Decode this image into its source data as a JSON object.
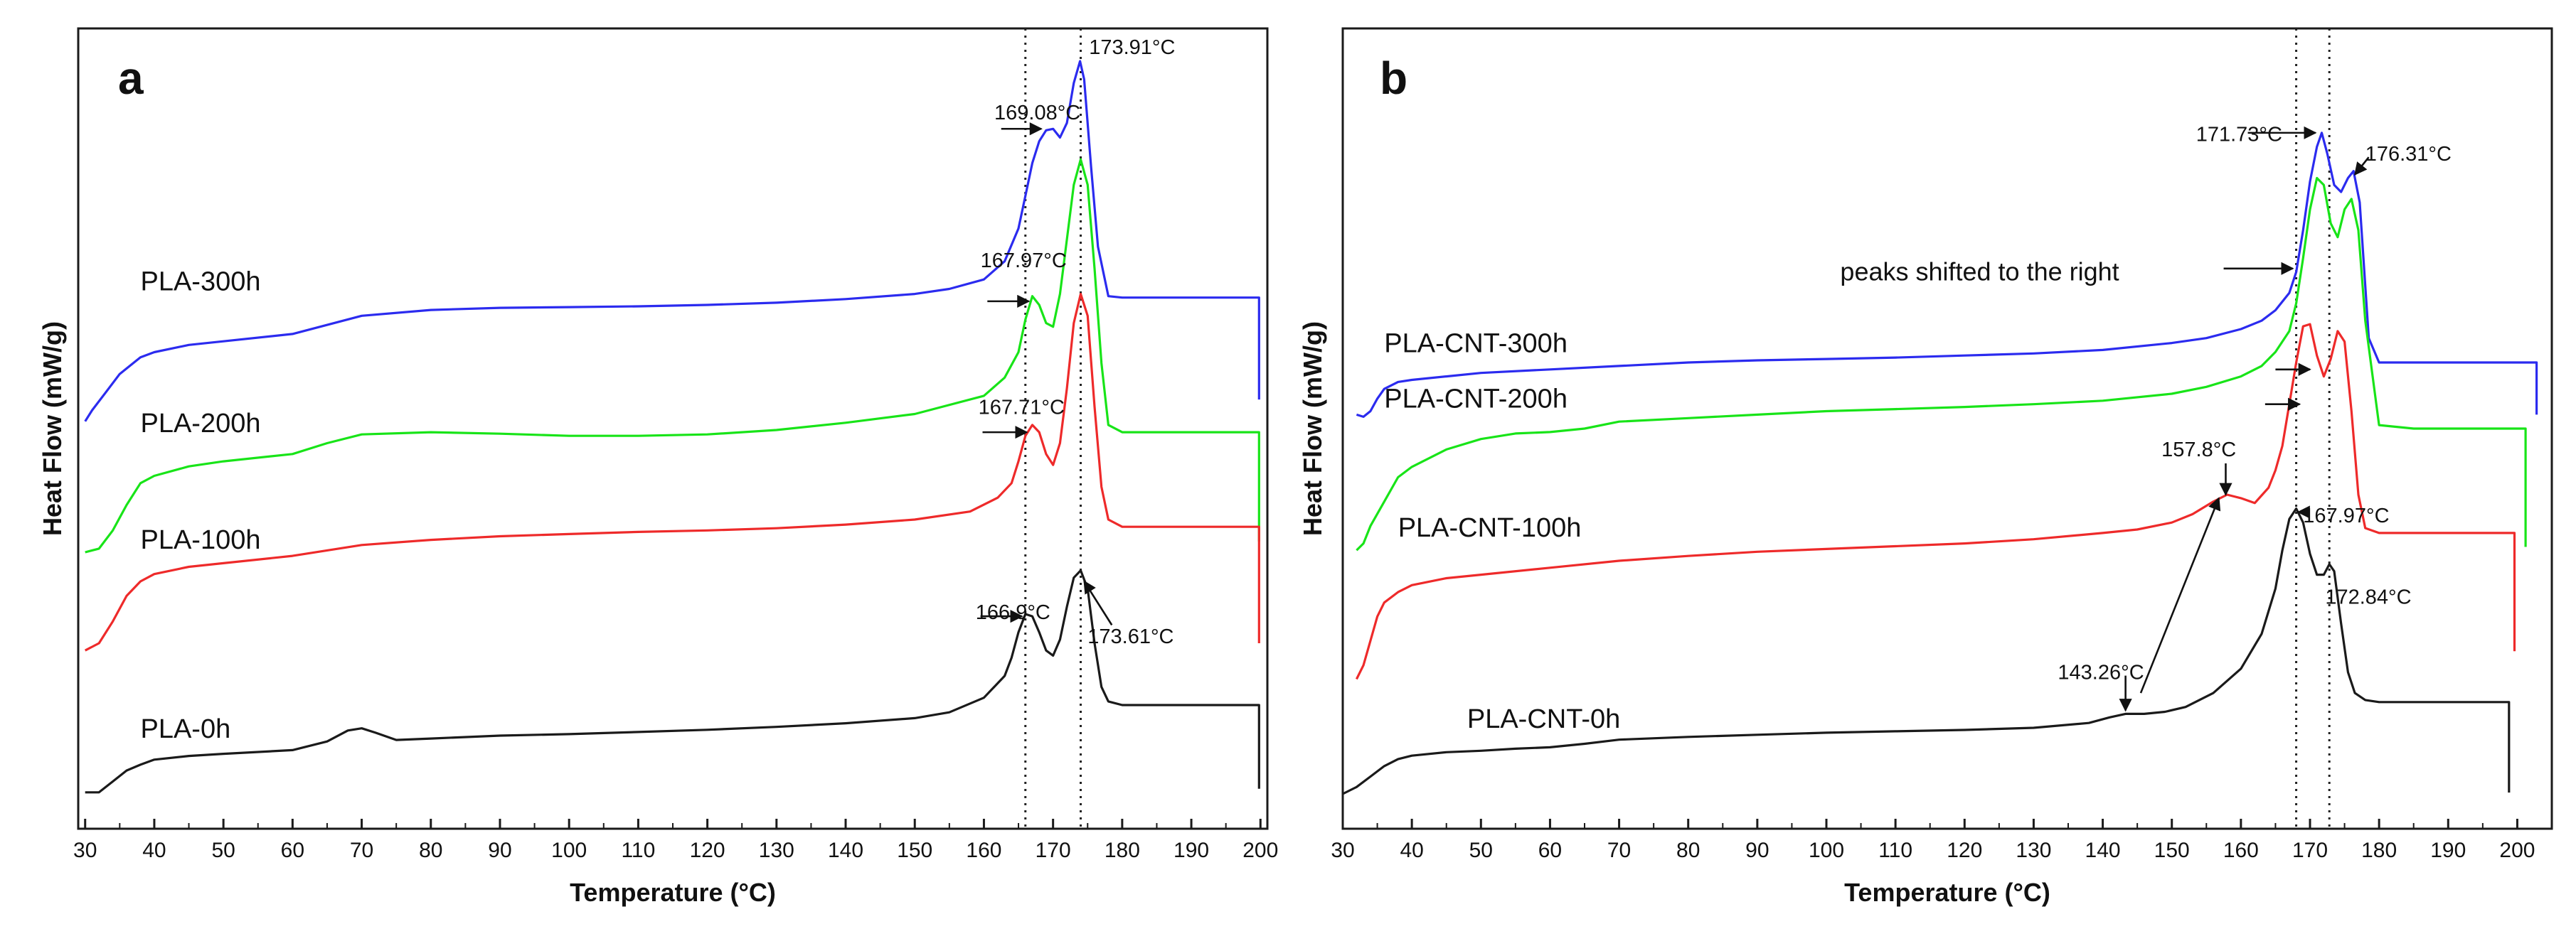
{
  "chart_data": [
    {
      "type": "line",
      "panel_label": "a",
      "xlabel": "Temperature (°C)",
      "ylabel": "Heat Flow (mW/g)",
      "xlim": [
        29,
        201
      ],
      "ylim": [
        -0.5,
        10.5
      ],
      "xticks": [
        30,
        40,
        50,
        60,
        70,
        80,
        90,
        100,
        110,
        120,
        130,
        140,
        150,
        160,
        170,
        180,
        190,
        200
      ],
      "reference_lines": [
        166,
        174
      ],
      "series": [
        {
          "name": "PLA-300h",
          "color": "#2b2bef",
          "label_at": [
            38,
            6.9
          ],
          "x": [
            30,
            31,
            33,
            35,
            38,
            40,
            45,
            50,
            60,
            70,
            80,
            90,
            100,
            110,
            120,
            130,
            140,
            150,
            155,
            160,
            163,
            165,
            166,
            167,
            168,
            169,
            170,
            171,
            172,
            173,
            173.9,
            174.5,
            175.5,
            176.5,
            178,
            180,
            185,
            190,
            195,
            199.8,
            199.8
          ],
          "y": [
            5.1,
            5.25,
            5.5,
            5.75,
            5.98,
            6.05,
            6.15,
            6.2,
            6.3,
            6.55,
            6.63,
            6.66,
            6.67,
            6.68,
            6.7,
            6.73,
            6.78,
            6.85,
            6.92,
            7.05,
            7.3,
            7.75,
            8.2,
            8.65,
            8.95,
            9.1,
            9.12,
            9.0,
            9.2,
            9.75,
            10.05,
            9.8,
            8.6,
            7.5,
            6.82,
            6.8,
            6.8,
            6.8,
            6.8,
            6.8,
            5.4
          ]
        },
        {
          "name": "PLA-200h",
          "color": "#18e418",
          "label_at": [
            38,
            4.95
          ],
          "x": [
            30,
            32,
            34,
            36,
            38,
            40,
            45,
            50,
            60,
            65,
            70,
            80,
            90,
            100,
            110,
            120,
            130,
            140,
            150,
            160,
            163,
            165,
            166,
            167,
            168,
            169,
            170,
            171,
            172,
            173,
            174,
            175,
            176,
            177,
            178,
            180,
            185,
            190,
            195,
            199.8,
            199.8
          ],
          "y": [
            3.3,
            3.35,
            3.6,
            3.95,
            4.25,
            4.35,
            4.48,
            4.55,
            4.65,
            4.8,
            4.92,
            4.95,
            4.93,
            4.9,
            4.9,
            4.92,
            4.98,
            5.08,
            5.2,
            5.45,
            5.7,
            6.05,
            6.5,
            6.82,
            6.7,
            6.45,
            6.4,
            6.85,
            7.6,
            8.35,
            8.7,
            8.35,
            7.2,
            5.9,
            5.05,
            4.95,
            4.95,
            4.95,
            4.95,
            4.95,
            3.45
          ]
        },
        {
          "name": "PLA-100h",
          "color": "#ee2a2a",
          "label_at": [
            38,
            3.35
          ],
          "x": [
            30,
            32,
            34,
            36,
            38,
            40,
            45,
            50,
            60,
            70,
            80,
            90,
            100,
            110,
            120,
            130,
            140,
            150,
            158,
            162,
            164,
            165,
            166,
            167,
            168,
            169,
            170,
            171,
            172,
            173,
            174,
            175,
            176,
            177,
            178,
            180,
            185,
            190,
            195,
            199.8,
            199.8
          ],
          "y": [
            1.95,
            2.05,
            2.35,
            2.7,
            2.9,
            3.0,
            3.1,
            3.15,
            3.25,
            3.4,
            3.47,
            3.52,
            3.55,
            3.58,
            3.6,
            3.63,
            3.68,
            3.75,
            3.86,
            4.05,
            4.25,
            4.55,
            4.9,
            5.05,
            4.95,
            4.65,
            4.5,
            4.8,
            5.55,
            6.45,
            6.85,
            6.55,
            5.3,
            4.2,
            3.75,
            3.65,
            3.65,
            3.65,
            3.65,
            3.65,
            2.05
          ]
        },
        {
          "name": "PLA-0h",
          "color": "#1a1a1a",
          "label_at": [
            38,
            0.75
          ],
          "x": [
            30,
            32,
            34,
            36,
            38,
            40,
            45,
            50,
            60,
            65,
            68,
            70,
            72,
            75,
            80,
            90,
            100,
            110,
            120,
            130,
            140,
            150,
            155,
            160,
            163,
            164,
            165,
            166,
            167,
            168,
            169,
            170,
            171,
            172,
            173,
            174,
            175,
            176,
            177,
            178,
            180,
            185,
            190,
            195,
            199.8,
            199.8
          ],
          "y": [
            0.0,
            0.0,
            0.15,
            0.3,
            0.38,
            0.45,
            0.5,
            0.53,
            0.58,
            0.7,
            0.85,
            0.88,
            0.82,
            0.72,
            0.74,
            0.78,
            0.8,
            0.83,
            0.86,
            0.9,
            0.95,
            1.02,
            1.1,
            1.3,
            1.6,
            1.85,
            2.2,
            2.45,
            2.42,
            2.2,
            1.95,
            1.88,
            2.1,
            2.55,
            2.95,
            3.05,
            2.8,
            2.05,
            1.45,
            1.25,
            1.2,
            1.2,
            1.2,
            1.2,
            1.2,
            0.05
          ]
        }
      ],
      "annotations": [
        {
          "text": "173.91°C",
          "at": [
            175.2,
            10.15
          ],
          "arrow": null
        },
        {
          "text": "169.08°C",
          "at": [
            161.5,
            9.25
          ],
          "arrow": [
            [
              162.5,
              9.12
            ],
            [
              168.3,
              9.12
            ]
          ]
        },
        {
          "text": "167.97°C",
          "at": [
            159.5,
            7.22
          ],
          "arrow": [
            [
              160.5,
              6.75
            ],
            [
              166.5,
              6.75
            ]
          ]
        },
        {
          "text": "167.71°C",
          "at": [
            159.2,
            5.2
          ],
          "arrow": [
            [
              159.8,
              4.95
            ],
            [
              166.2,
              4.95
            ]
          ]
        },
        {
          "text": "166.9°C",
          "at": [
            158.8,
            2.38
          ],
          "arrow": [
            [
              159.5,
              2.42
            ],
            [
              165.5,
              2.42
            ]
          ]
        },
        {
          "text": "173.61°C",
          "at": [
            175.0,
            2.05
          ],
          "arrow": [
            [
              178.5,
              2.3
            ],
            [
              174.5,
              2.9
            ]
          ]
        }
      ]
    },
    {
      "type": "line",
      "panel_label": "b",
      "xlabel": "Temperature (°C)",
      "ylabel": "Heat Flow (mW/g)",
      "xlim": [
        30,
        205
      ],
      "ylim": [
        -0.5,
        11
      ],
      "xticks": [
        30,
        40,
        50,
        60,
        70,
        80,
        90,
        100,
        110,
        120,
        130,
        140,
        150,
        160,
        170,
        180,
        190,
        200
      ],
      "reference_lines": [
        168,
        172.8
      ],
      "series": [
        {
          "name": "PLA-CNT-300h",
          "color": "#2b2bef",
          "label_at": [
            36,
            6.35
          ],
          "x": [
            32,
            33,
            34,
            35,
            36,
            38,
            40,
            45,
            50,
            60,
            70,
            80,
            90,
            100,
            110,
            120,
            130,
            140,
            150,
            155,
            160,
            163,
            165,
            167,
            168,
            169,
            170,
            171,
            171.7,
            172.5,
            173.5,
            174.5,
            175.5,
            176.3,
            177.2,
            178.5,
            180,
            185,
            190,
            195,
            200,
            202,
            202.8,
            202.8
          ],
          "y": [
            5.45,
            5.42,
            5.5,
            5.68,
            5.82,
            5.92,
            5.95,
            6.0,
            6.05,
            6.1,
            6.15,
            6.2,
            6.23,
            6.25,
            6.27,
            6.3,
            6.33,
            6.38,
            6.48,
            6.55,
            6.68,
            6.8,
            6.95,
            7.2,
            7.5,
            8.1,
            8.8,
            9.3,
            9.5,
            9.2,
            8.75,
            8.65,
            8.85,
            8.95,
            8.5,
            6.55,
            6.2,
            6.2,
            6.2,
            6.2,
            6.2,
            6.2,
            6.2,
            5.45
          ]
        },
        {
          "name": "PLA-CNT-200h",
          "color": "#18e418",
          "label_at": [
            36,
            5.55
          ],
          "x": [
            32,
            33,
            34,
            36,
            38,
            40,
            45,
            50,
            55,
            60,
            65,
            70,
            80,
            90,
            100,
            110,
            120,
            130,
            140,
            150,
            155,
            160,
            163,
            165,
            167,
            168,
            169,
            170,
            171,
            172,
            173,
            174,
            175,
            176,
            177,
            178,
            180,
            185,
            190,
            195,
            200,
            201.2,
            201.2
          ],
          "y": [
            3.5,
            3.6,
            3.85,
            4.2,
            4.55,
            4.7,
            4.95,
            5.1,
            5.18,
            5.2,
            5.25,
            5.35,
            5.4,
            5.45,
            5.5,
            5.53,
            5.56,
            5.6,
            5.65,
            5.75,
            5.85,
            6.0,
            6.15,
            6.35,
            6.65,
            7.05,
            7.7,
            8.4,
            8.85,
            8.75,
            8.2,
            8.0,
            8.4,
            8.55,
            8.1,
            6.8,
            5.3,
            5.25,
            5.25,
            5.25,
            5.25,
            5.25,
            3.55
          ]
        },
        {
          "name": "PLA-CNT-100h",
          "color": "#ee2a2a",
          "label_at": [
            38,
            3.7
          ],
          "x": [
            32,
            33,
            34,
            35,
            36,
            38,
            40,
            45,
            50,
            60,
            70,
            80,
            90,
            100,
            110,
            120,
            130,
            140,
            145,
            150,
            153,
            156,
            158,
            160,
            162,
            164,
            165,
            166,
            167,
            168,
            169,
            170,
            171,
            172,
            173,
            174,
            175,
            176,
            177,
            178,
            180,
            185,
            190,
            195,
            199.6,
            199.6
          ],
          "y": [
            1.65,
            1.85,
            2.2,
            2.55,
            2.75,
            2.9,
            3.0,
            3.1,
            3.15,
            3.25,
            3.35,
            3.42,
            3.48,
            3.52,
            3.56,
            3.6,
            3.66,
            3.75,
            3.8,
            3.9,
            4.02,
            4.2,
            4.3,
            4.25,
            4.18,
            4.4,
            4.65,
            5.0,
            5.6,
            6.2,
            6.72,
            6.75,
            6.3,
            6.0,
            6.25,
            6.65,
            6.5,
            5.5,
            4.3,
            3.82,
            3.75,
            3.75,
            3.75,
            3.75,
            3.75,
            2.05
          ]
        },
        {
          "name": "PLA-CNT-0h",
          "color": "#1a1a1a",
          "label_at": [
            48,
            0.95
          ],
          "x": [
            30,
            32,
            34,
            36,
            38,
            40,
            45,
            50,
            55,
            60,
            65,
            70,
            80,
            90,
            100,
            110,
            120,
            130,
            138,
            141,
            143.3,
            146,
            149,
            152,
            156,
            160,
            163,
            165,
            166,
            167,
            168,
            169,
            170,
            171,
            172,
            172.8,
            173.5,
            174.5,
            175.5,
            176.5,
            178,
            180,
            185,
            190,
            195,
            198.8,
            198.8
          ],
          "y": [
            0.0,
            0.1,
            0.25,
            0.4,
            0.5,
            0.55,
            0.6,
            0.62,
            0.65,
            0.67,
            0.72,
            0.78,
            0.82,
            0.85,
            0.88,
            0.9,
            0.92,
            0.95,
            1.02,
            1.1,
            1.15,
            1.15,
            1.18,
            1.25,
            1.45,
            1.8,
            2.3,
            2.95,
            3.5,
            3.95,
            4.1,
            3.9,
            3.45,
            3.15,
            3.15,
            3.3,
            3.2,
            2.45,
            1.75,
            1.45,
            1.35,
            1.32,
            1.32,
            1.32,
            1.32,
            1.32,
            0.02
          ]
        }
      ],
      "annotations": [
        {
          "text": "171.73°C",
          "at": [
            153.5,
            9.38
          ],
          "arrow": [
            [
              161,
              9.5
            ],
            [
              170.8,
              9.5
            ]
          ]
        },
        {
          "text": "176.31°C",
          "at": [
            178.0,
            9.1
          ],
          "arrow": [
            [
              178.5,
              9.15
            ],
            [
              176.5,
              8.9
            ]
          ]
        },
        {
          "text": "peaks shifted to the right",
          "at": [
            102,
            7.38
          ],
          "arrow": [
            [
              157.5,
              7.55
            ],
            [
              167.5,
              7.55
            ]
          ]
        },
        {
          "text": "157.8°C",
          "at": [
            148.5,
            4.85
          ],
          "arrow": [
            [
              157.8,
              4.75
            ],
            [
              157.8,
              4.3
            ]
          ]
        },
        {
          "text": "167.97°C",
          "at": [
            169.0,
            3.9
          ],
          "arrow": [
            [
              169.5,
              4.05
            ],
            [
              168.3,
              4.05
            ]
          ]
        },
        {
          "text": "143.26°C",
          "at": [
            133.5,
            1.65
          ],
          "arrow": [
            [
              143.3,
              1.7
            ],
            [
              143.3,
              1.2
            ]
          ]
        },
        {
          "text": "172.84°C",
          "at": [
            172.2,
            2.73
          ],
          "arrow": null
        }
      ],
      "extra_arrows": [
        [
          [
            165.0,
            6.1
          ],
          [
            170.0,
            6.1
          ]
        ],
        [
          [
            163.5,
            5.6
          ],
          [
            168.5,
            5.6
          ]
        ],
        [
          [
            145.5,
            1.45
          ],
          [
            156.8,
            4.25
          ]
        ]
      ]
    }
  ]
}
